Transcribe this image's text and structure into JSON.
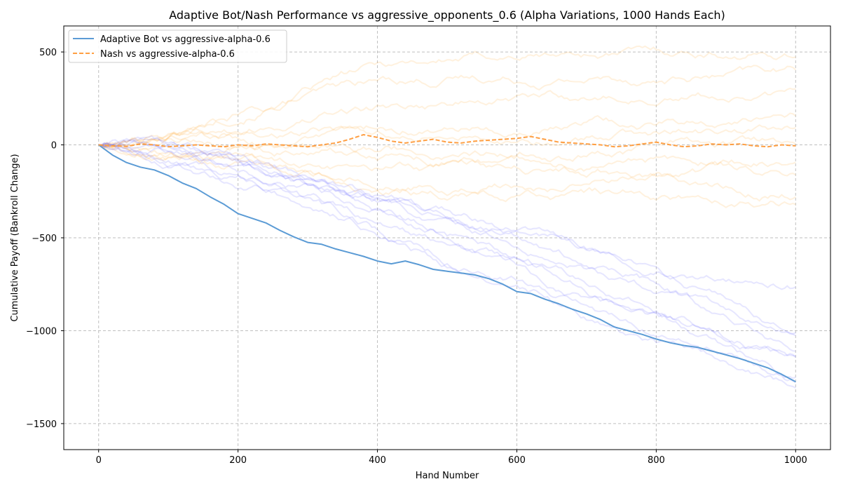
{
  "chart_data": {
    "type": "line",
    "title": "Adaptive Bot/Nash Performance vs  aggressive_opponents_0.6 (Alpha Variations, 1000 Hands Each)",
    "xlabel": "Hand Number",
    "ylabel": "Cumulative Payoff (Bankroll Change)",
    "xlim": [
      -50,
      1050
    ],
    "ylim": [
      -1640,
      640
    ],
    "xticks": [
      0,
      200,
      400,
      600,
      800,
      1000
    ],
    "yticks": [
      500,
      0,
      -500,
      -1000,
      -1500
    ],
    "xtick_labels": [
      "0",
      "200",
      "400",
      "600",
      "800",
      "1000"
    ],
    "ytick_labels": [
      "500",
      "0",
      "−500",
      "−1000",
      "−1500"
    ],
    "grid": true,
    "legend_position": "top-left",
    "colors": {
      "adaptive": "#5b9bd5",
      "nash": "#ff9f43",
      "adaptive_runs": "#5050ff",
      "nash_runs": "#ffb347"
    },
    "series": [
      {
        "name": "Adaptive Bot vs aggressive-alpha-0.6",
        "style": "solid",
        "x": [
          0,
          20,
          40,
          60,
          80,
          100,
          120,
          140,
          160,
          180,
          200,
          220,
          240,
          260,
          280,
          300,
          320,
          340,
          360,
          380,
          400,
          420,
          440,
          460,
          480,
          500,
          520,
          540,
          560,
          580,
          600,
          620,
          640,
          660,
          680,
          700,
          720,
          740,
          760,
          780,
          800,
          820,
          840,
          860,
          880,
          900,
          920,
          940,
          960,
          980,
          1000
        ],
        "values": [
          0,
          -55,
          -95,
          -120,
          -135,
          -165,
          -205,
          -235,
          -280,
          -320,
          -370,
          -395,
          -420,
          -460,
          -495,
          -525,
          -535,
          -560,
          -580,
          -600,
          -625,
          -640,
          -625,
          -645,
          -670,
          -680,
          -690,
          -700,
          -720,
          -750,
          -790,
          -800,
          -830,
          -855,
          -885,
          -910,
          -940,
          -980,
          -1000,
          -1020,
          -1045,
          -1065,
          -1080,
          -1090,
          -1110,
          -1130,
          -1150,
          -1175,
          -1200,
          -1235,
          -1275
        ]
      },
      {
        "name": "Nash vs aggressive-alpha-0.6",
        "style": "dashed",
        "x": [
          0,
          20,
          40,
          60,
          80,
          100,
          120,
          140,
          160,
          180,
          200,
          220,
          240,
          260,
          280,
          300,
          320,
          340,
          360,
          380,
          400,
          420,
          440,
          460,
          480,
          500,
          520,
          540,
          560,
          580,
          600,
          620,
          640,
          660,
          680,
          700,
          720,
          740,
          760,
          780,
          800,
          820,
          840,
          860,
          880,
          900,
          920,
          940,
          960,
          980,
          1000
        ],
        "values": [
          0,
          -5,
          -8,
          5,
          0,
          -10,
          -5,
          0,
          -5,
          -10,
          0,
          -5,
          5,
          0,
          -5,
          -10,
          0,
          10,
          30,
          55,
          40,
          20,
          10,
          20,
          30,
          15,
          10,
          20,
          25,
          30,
          35,
          45,
          30,
          15,
          10,
          5,
          0,
          -10,
          -5,
          5,
          15,
          0,
          -10,
          -5,
          5,
          0,
          5,
          -5,
          -10,
          0,
          -5
        ]
      }
    ]
  }
}
